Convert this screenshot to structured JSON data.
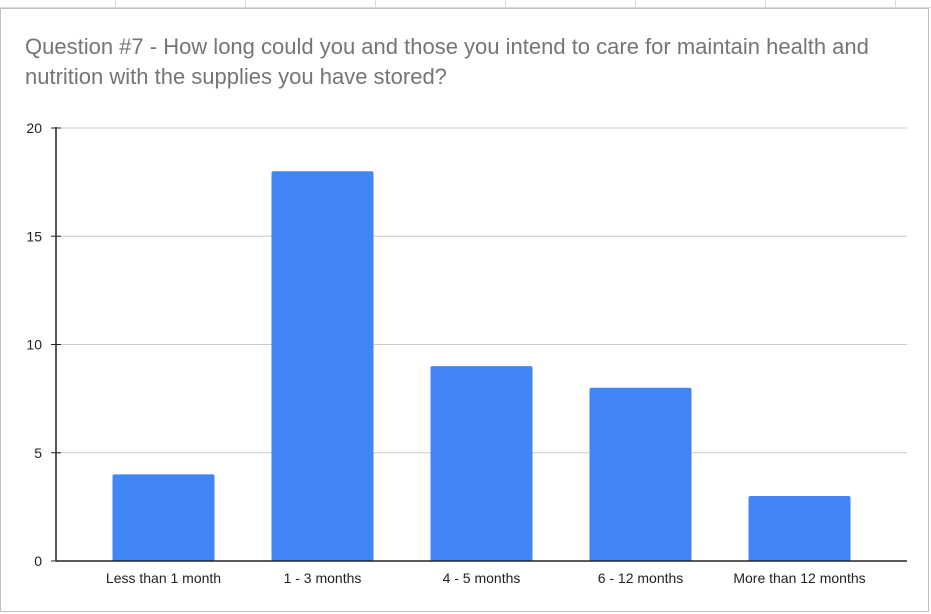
{
  "chart_data": {
    "type": "bar",
    "title": "Question #7 - How long could you and those you intend to care for maintain health and nutrition with the supplies you have stored?",
    "categories": [
      "Less than 1 month",
      "1 - 3 months",
      "4 - 5 months",
      "6 - 12 months",
      "More than 12 months"
    ],
    "values": [
      4,
      18,
      9,
      8,
      3
    ],
    "ylim": [
      0,
      20
    ],
    "yticks": [
      "0",
      "5",
      "10",
      "15",
      "20"
    ],
    "xlabel": "",
    "ylabel": "",
    "grid": true,
    "legend": "none",
    "bar_color": "#4285f4",
    "grid_color": "#cccccc",
    "axis_color": "#222222"
  }
}
